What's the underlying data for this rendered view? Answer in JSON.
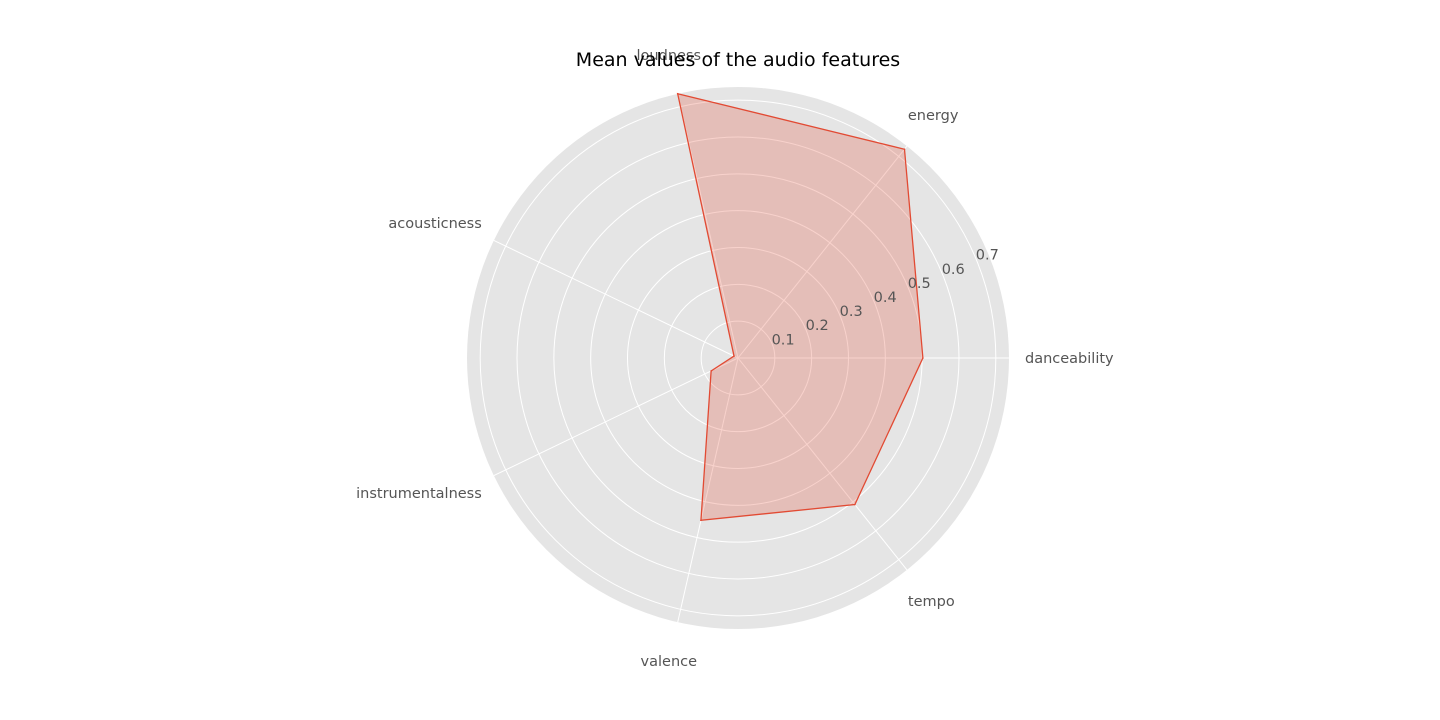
{
  "chart_data": {
    "type": "radar",
    "title": "Mean values of the audio features",
    "categories": [
      "danceability",
      "energy",
      "loudness",
      "acousticness",
      "instrumentalness",
      "valence",
      "tempo"
    ],
    "series": [
      {
        "values": [
          0.502,
          0.725,
          0.736,
          0.012,
          0.081,
          0.452,
          0.509
        ]
      }
    ],
    "radial_ticks": [
      0.1,
      0.2,
      0.3,
      0.4,
      0.5,
      0.6,
      0.7
    ],
    "rlim": [
      0,
      0.7358
    ],
    "grid": true,
    "colors": {
      "background": "#e5e5e5",
      "grid": "#ffffff",
      "line": "#e24a33",
      "fill": "#e24a33",
      "label": "#555555",
      "title": "#000000"
    }
  }
}
